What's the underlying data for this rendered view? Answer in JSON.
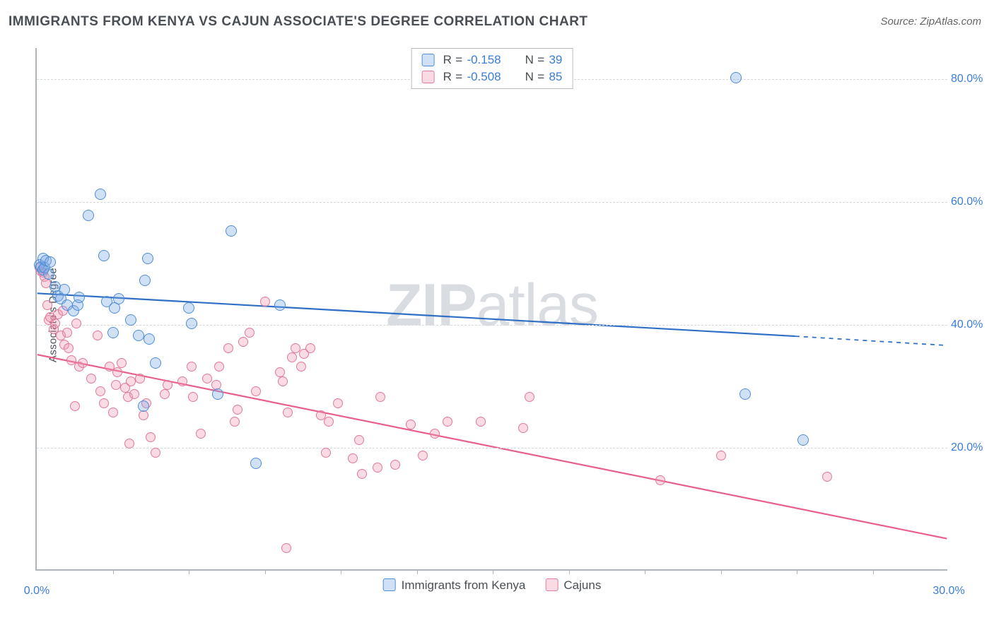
{
  "title": "IMMIGRANTS FROM KENYA VS CAJUN ASSOCIATE'S DEGREE CORRELATION CHART",
  "source": "Source: ZipAtlas.com",
  "ylabel": "Associate's Degree",
  "watermark_bold": "ZIP",
  "watermark_rest": "atlas",
  "chart": {
    "type": "scatter",
    "xlim": [
      0,
      30
    ],
    "ylim": [
      0,
      85
    ],
    "xticks": [
      0,
      30
    ],
    "xticks_minor": [
      2.5,
      5,
      7.5,
      10,
      12.5,
      15,
      17.5,
      20,
      22.5,
      25,
      27.5
    ],
    "yticks": [
      20,
      40,
      60,
      80
    ],
    "xtick_format_suffix": "%",
    "ytick_format_suffix": "%",
    "grid_color": "#d5d8dc",
    "axis_color": "#b0b5bc",
    "background_color": "#ffffff",
    "tick_label_color": "#3b7dd8",
    "tick_label_fontsize": 16,
    "marker_radius": 8,
    "marker_radius_small": 7,
    "marker_border_width": 1.2,
    "line_width": 2.2
  },
  "series": [
    {
      "name": "Immigrants from Kenya",
      "fill": "rgba(120,170,230,0.35)",
      "stroke": "#4f8dd6",
      "line_color": "#2f6fc6",
      "r_value": "-0.158",
      "n_value": "39",
      "trend": {
        "x1": 0,
        "y1": 45,
        "x2": 25,
        "y2": 38,
        "dash_x2": 30,
        "dash_y2": 36.5
      },
      "points": [
        [
          0.1,
          49.5
        ],
        [
          0.15,
          49.2
        ],
        [
          0.2,
          48.7
        ],
        [
          0.22,
          50.5
        ],
        [
          0.25,
          49.0
        ],
        [
          0.3,
          50.2
        ],
        [
          0.4,
          48.0
        ],
        [
          0.45,
          50.0
        ],
        [
          0.6,
          46.0
        ],
        [
          0.7,
          44.5
        ],
        [
          0.8,
          44.0
        ],
        [
          0.9,
          45.5
        ],
        [
          1.0,
          43.0
        ],
        [
          1.2,
          42.0
        ],
        [
          1.35,
          43.0
        ],
        [
          1.4,
          44.2
        ],
        [
          1.7,
          57.5
        ],
        [
          2.1,
          61.0
        ],
        [
          2.2,
          51.0
        ],
        [
          2.3,
          43.5
        ],
        [
          2.5,
          38.5
        ],
        [
          2.55,
          42.5
        ],
        [
          2.7,
          44.0
        ],
        [
          3.1,
          40.5
        ],
        [
          3.35,
          38.0
        ],
        [
          3.5,
          26.5
        ],
        [
          3.55,
          47.0
        ],
        [
          3.65,
          50.5
        ],
        [
          3.7,
          37.5
        ],
        [
          3.9,
          33.5
        ],
        [
          5.0,
          42.5
        ],
        [
          5.1,
          40.0
        ],
        [
          5.95,
          28.5
        ],
        [
          6.4,
          55.0
        ],
        [
          7.2,
          17.2
        ],
        [
          8.0,
          43.0
        ],
        [
          23.0,
          80.0
        ],
        [
          23.3,
          28.5
        ],
        [
          25.2,
          21.0
        ]
      ]
    },
    {
      "name": "Cajuns",
      "fill": "rgba(240,150,175,0.35)",
      "stroke": "#e07a9b",
      "line_color": "#e85f8a",
      "r_value": "-0.508",
      "n_value": "85",
      "trend": {
        "x1": 0,
        "y1": 35,
        "x2": 30,
        "y2": 5
      },
      "points": [
        [
          0.1,
          49.0
        ],
        [
          0.15,
          48.5
        ],
        [
          0.2,
          48.2
        ],
        [
          0.25,
          47.5
        ],
        [
          0.3,
          46.5
        ],
        [
          0.35,
          43.0
        ],
        [
          0.4,
          40.5
        ],
        [
          0.45,
          41.0
        ],
        [
          0.55,
          39.0
        ],
        [
          0.6,
          40.0
        ],
        [
          0.7,
          41.5
        ],
        [
          0.8,
          38.0
        ],
        [
          0.85,
          42.0
        ],
        [
          0.9,
          36.5
        ],
        [
          1.0,
          38.5
        ],
        [
          1.05,
          36.0
        ],
        [
          1.15,
          34.0
        ],
        [
          1.25,
          26.5
        ],
        [
          1.3,
          40.0
        ],
        [
          1.4,
          33.0
        ],
        [
          1.5,
          33.5
        ],
        [
          1.8,
          31.0
        ],
        [
          2.0,
          38.0
        ],
        [
          2.1,
          29.0
        ],
        [
          2.2,
          27.0
        ],
        [
          2.4,
          33.0
        ],
        [
          2.5,
          25.5
        ],
        [
          2.6,
          30.0
        ],
        [
          2.65,
          32.0
        ],
        [
          2.8,
          33.5
        ],
        [
          2.9,
          29.5
        ],
        [
          3.0,
          28.0
        ],
        [
          3.05,
          20.5
        ],
        [
          3.1,
          30.5
        ],
        [
          3.2,
          28.5
        ],
        [
          3.4,
          31.0
        ],
        [
          3.5,
          25.0
        ],
        [
          3.6,
          27.0
        ],
        [
          3.75,
          21.5
        ],
        [
          3.9,
          19.0
        ],
        [
          4.2,
          28.5
        ],
        [
          4.3,
          30.0
        ],
        [
          4.8,
          30.5
        ],
        [
          5.1,
          33.0
        ],
        [
          5.15,
          28.0
        ],
        [
          5.4,
          22.0
        ],
        [
          5.6,
          31.0
        ],
        [
          5.9,
          30.0
        ],
        [
          6.0,
          33.0
        ],
        [
          6.3,
          36.0
        ],
        [
          6.5,
          24.0
        ],
        [
          6.6,
          26.0
        ],
        [
          6.8,
          37.0
        ],
        [
          7.0,
          38.5
        ],
        [
          7.2,
          29.0
        ],
        [
          7.5,
          43.5
        ],
        [
          8.0,
          32.0
        ],
        [
          8.1,
          30.5
        ],
        [
          8.2,
          3.5
        ],
        [
          8.25,
          25.5
        ],
        [
          8.4,
          34.5
        ],
        [
          8.5,
          36.0
        ],
        [
          8.7,
          33.0
        ],
        [
          8.8,
          35.0
        ],
        [
          9.0,
          36.0
        ],
        [
          9.35,
          25.0
        ],
        [
          9.5,
          19.0
        ],
        [
          9.6,
          24.0
        ],
        [
          9.9,
          27.0
        ],
        [
          10.4,
          18.0
        ],
        [
          10.6,
          21.0
        ],
        [
          10.7,
          15.5
        ],
        [
          11.2,
          16.5
        ],
        [
          11.3,
          28.0
        ],
        [
          11.8,
          17.0
        ],
        [
          12.3,
          23.5
        ],
        [
          12.7,
          18.5
        ],
        [
          13.1,
          22.0
        ],
        [
          13.5,
          24.0
        ],
        [
          14.6,
          24.0
        ],
        [
          16.0,
          23.0
        ],
        [
          16.2,
          28.0
        ],
        [
          20.5,
          14.5
        ],
        [
          22.5,
          18.5
        ],
        [
          26.0,
          15.0
        ]
      ]
    }
  ]
}
